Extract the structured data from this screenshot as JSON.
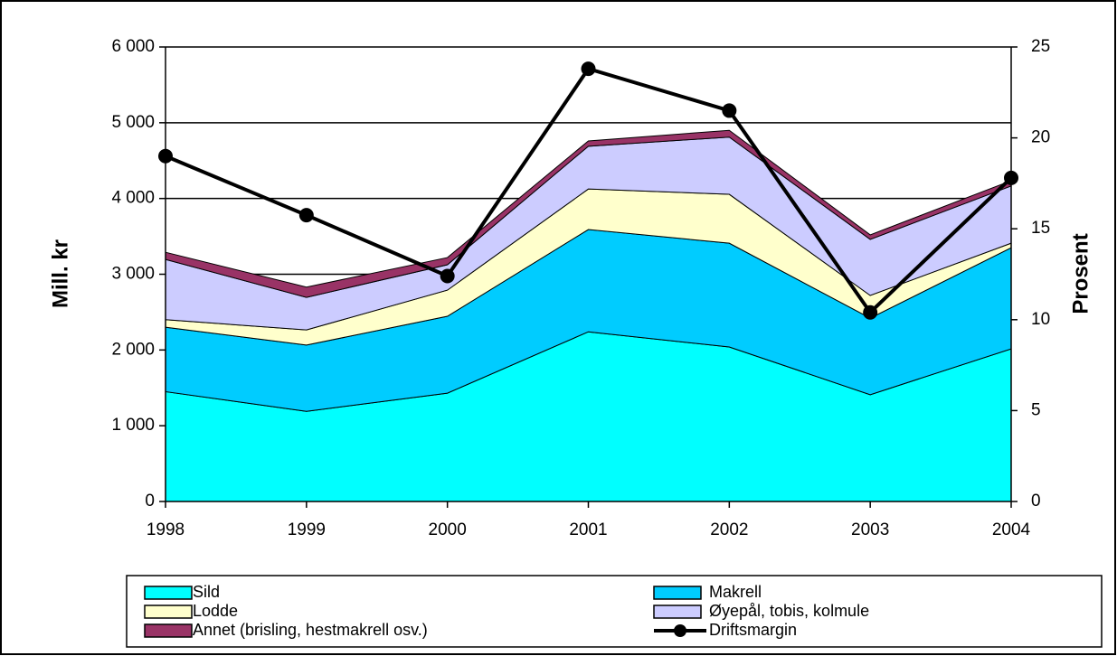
{
  "chart_data": {
    "type": "area",
    "stacked": true,
    "y_label": "Mill. kr",
    "y2_label": "Prosent",
    "categories": [
      "1998",
      "1999",
      "2000",
      "2001",
      "2002",
      "2003",
      "2004"
    ],
    "series": [
      {
        "name": "Sild",
        "color": "#00ffff",
        "values": [
          1450,
          1190,
          1430,
          2240,
          2040,
          1410,
          2015
        ]
      },
      {
        "name": "Makrell",
        "color": "#00ccff",
        "values": [
          850,
          875,
          1015,
          1350,
          1370,
          1010,
          1335
        ]
      },
      {
        "name": "Lodde",
        "color": "#ffffcc",
        "values": [
          100,
          200,
          345,
          535,
          645,
          300,
          60
        ]
      },
      {
        "name": "Øyepål, tobis, kolmule",
        "color": "#ccccff",
        "values": [
          795,
          430,
          335,
          565,
          755,
          740,
          755
        ]
      },
      {
        "name": "Annet (brisling, hestmakrell osv.)",
        "color": "#993366",
        "values": [
          95,
          135,
          95,
          70,
          90,
          60,
          70
        ]
      },
      {
        "name": "Driftsmargin",
        "color": "#000000",
        "axis": "y2",
        "values": [
          19.0,
          15.75,
          12.4,
          23.8,
          21.5,
          10.4,
          17.8
        ]
      }
    ],
    "ylim": [
      0,
      6000
    ],
    "yticks": [
      0,
      {
        "value": 1000,
        "label": "1 000"
      },
      {
        "value": 2000,
        "label": "2 000"
      },
      {
        "value": 3000,
        "label": "3 000"
      },
      {
        "value": 4000,
        "label": "4 000"
      },
      {
        "value": 5000,
        "label": "5 000"
      },
      {
        "value": 6000,
        "label": "6 000"
      }
    ],
    "y2lim": [
      0,
      25
    ],
    "y2ticks": [
      0,
      5,
      10,
      15,
      20,
      25
    ],
    "grid": true,
    "legend": "bottom"
  }
}
